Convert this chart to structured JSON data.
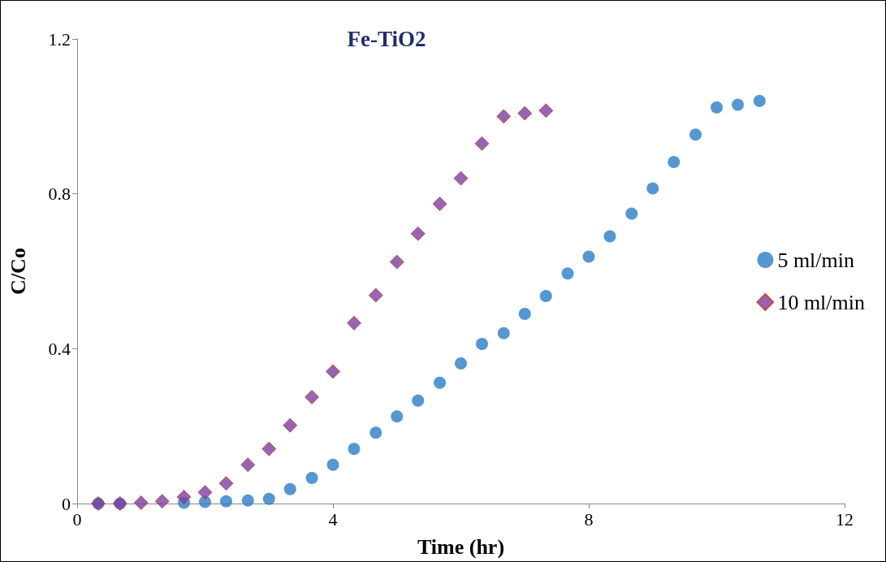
{
  "chart_data": {
    "type": "scatter",
    "title": "Fe-TiO2",
    "xlabel": "Time (hr)",
    "ylabel": "C/Co",
    "xlim": [
      0,
      12
    ],
    "xticks": [
      0,
      4,
      8,
      12
    ],
    "ylim": [
      0,
      1.2
    ],
    "yticks": [
      0,
      0.4,
      0.8,
      1.2
    ],
    "grid": false,
    "legend": "right",
    "series": [
      {
        "name": "5 ml/min",
        "color": "#2a7dc4",
        "marker": "circle",
        "x": [
          0.33,
          0.67,
          1,
          1.33,
          1.67,
          2,
          2.33,
          2.67,
          3,
          3.33,
          3.67,
          4,
          4.33,
          4.67,
          5,
          5.33,
          5.67,
          6,
          6.33,
          6.67,
          7,
          7.33,
          7.67,
          8,
          8.33,
          8.67,
          9,
          9.33,
          9.67,
          10,
          10.33,
          10.67
        ],
        "values": [
          0,
          0,
          null,
          null,
          0.002,
          0.004,
          0.006,
          0.008,
          0.012,
          0.037,
          0.066,
          0.1,
          0.141,
          0.183,
          0.225,
          0.266,
          0.312,
          0.362,
          0.412,
          0.44,
          0.49,
          0.536,
          0.594,
          0.638,
          0.69,
          0.749,
          0.814,
          0.882,
          0.953,
          1.023,
          1.03,
          1.04
        ]
      },
      {
        "name": "10 ml/min",
        "color": "#7b3fa0",
        "marker": "diamond",
        "x": [
          0.33,
          0.67,
          1,
          1.33,
          1.67,
          2,
          2.33,
          2.67,
          3,
          3.33,
          3.67,
          4,
          4.33,
          4.67,
          5,
          5.33,
          5.67,
          6,
          6.33,
          6.67,
          7,
          7.33
        ],
        "values": [
          0,
          0,
          0.002,
          0.006,
          0.017,
          0.029,
          0.052,
          0.1,
          0.141,
          0.202,
          0.275,
          0.341,
          0.466,
          0.538,
          0.624,
          0.697,
          0.774,
          0.84,
          0.93,
          1.0,
          1.008,
          1.015
        ]
      }
    ]
  }
}
